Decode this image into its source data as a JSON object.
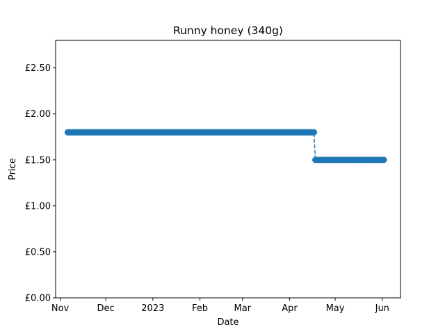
{
  "chart_data": {
    "type": "line",
    "title": "Runny honey (340g)",
    "xlabel": "Date",
    "ylabel": "Price",
    "x_axis": {
      "type": "date",
      "range": [
        "2022-10-29",
        "2023-06-13"
      ],
      "ticks": [
        {
          "date": "2022-11-01",
          "label": "Nov"
        },
        {
          "date": "2022-12-01",
          "label": "Dec"
        },
        {
          "date": "2023-01-01",
          "label": "2023"
        },
        {
          "date": "2023-02-01",
          "label": "Feb"
        },
        {
          "date": "2023-03-01",
          "label": "Mar"
        },
        {
          "date": "2023-04-01",
          "label": "Apr"
        },
        {
          "date": "2023-05-01",
          "label": "May"
        },
        {
          "date": "2023-06-01",
          "label": "Jun"
        }
      ]
    },
    "y_axis": {
      "range": [
        0,
        2.8
      ],
      "ticks": [
        {
          "value": 0.0,
          "label": "£0.00"
        },
        {
          "value": 0.5,
          "label": "£0.50"
        },
        {
          "value": 1.0,
          "label": "£1.00"
        },
        {
          "value": 1.5,
          "label": "£1.50"
        },
        {
          "value": 2.0,
          "label": "£2.00"
        },
        {
          "value": 2.5,
          "label": "£2.50"
        }
      ]
    },
    "grid": false,
    "line_style": "dashed",
    "marker": "circle",
    "series": [
      {
        "color": "#1f77b4",
        "segments": [
          {
            "start": "2022-11-06",
            "end": "2023-04-17",
            "price": 1.8
          },
          {
            "start": "2023-04-18",
            "end": "2023-06-02",
            "price": 1.5
          }
        ]
      }
    ]
  }
}
